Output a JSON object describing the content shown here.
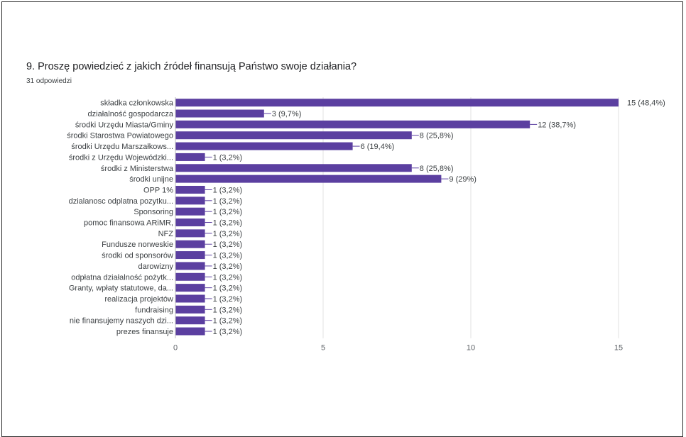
{
  "title": "9. Proszę powiedzieć z jakich źródeł finansują Państwo swoje działania?",
  "subtitle": "31 odpowiedzi",
  "colors": {
    "bar": "#5b3fa0",
    "grid": "#e0e0e0",
    "connector": "#5b3fa0"
  },
  "chart_data": {
    "type": "bar",
    "orientation": "horizontal",
    "title": "9. Proszę powiedzieć z jakich źródeł finansują Państwo swoje działania?",
    "xlim": [
      0,
      15
    ],
    "ticks": [
      0,
      5,
      10,
      15
    ],
    "tick_labels": [
      "0",
      "5",
      "10",
      "15"
    ],
    "grid": true,
    "categories": [
      "składka członkowska",
      "działalność gospodarcza",
      "środki Urzędu Miasta/Gminy",
      "środki Starostwa Powiatowego",
      "środki Urzędu Marszałkows...",
      "środki z Urzędu Wojewódzki...",
      "środki z Ministerstwa",
      "środki unijne",
      "OPP 1%",
      "dzialanosc odplatna pozytku...",
      "Sponsoring",
      "pomoc finansowa ARiMR,",
      "NFZ",
      "Fundusze norweskie",
      "środki od sponsorów",
      "darowizny",
      "odpłatna działalność pożytk...",
      "Granty, wpłaty statutowe, da...",
      "realizacja projektów",
      "fundraising",
      "nie finansujemy naszych dzi...",
      "prezes finansuje"
    ],
    "values": [
      15,
      3,
      12,
      8,
      6,
      1,
      8,
      9,
      1,
      1,
      1,
      1,
      1,
      1,
      1,
      1,
      1,
      1,
      1,
      1,
      1,
      1
    ],
    "value_labels": [
      "15 (48,4%)",
      "3 (9,7%)",
      "12 (38,7%)",
      "8 (25,8%)",
      "6 (19,4%)",
      "1 (3,2%)",
      "8 (25,8%)",
      "9 (29%)",
      "1 (3,2%)",
      "1 (3,2%)",
      "1 (3,2%)",
      "1 (3,2%)",
      "1 (3,2%)",
      "1 (3,2%)",
      "1 (3,2%)",
      "1 (3,2%)",
      "1 (3,2%)",
      "1 (3,2%)",
      "1 (3,2%)",
      "1 (3,2%)",
      "1 (3,2%)",
      "1 (3,2%)"
    ]
  }
}
